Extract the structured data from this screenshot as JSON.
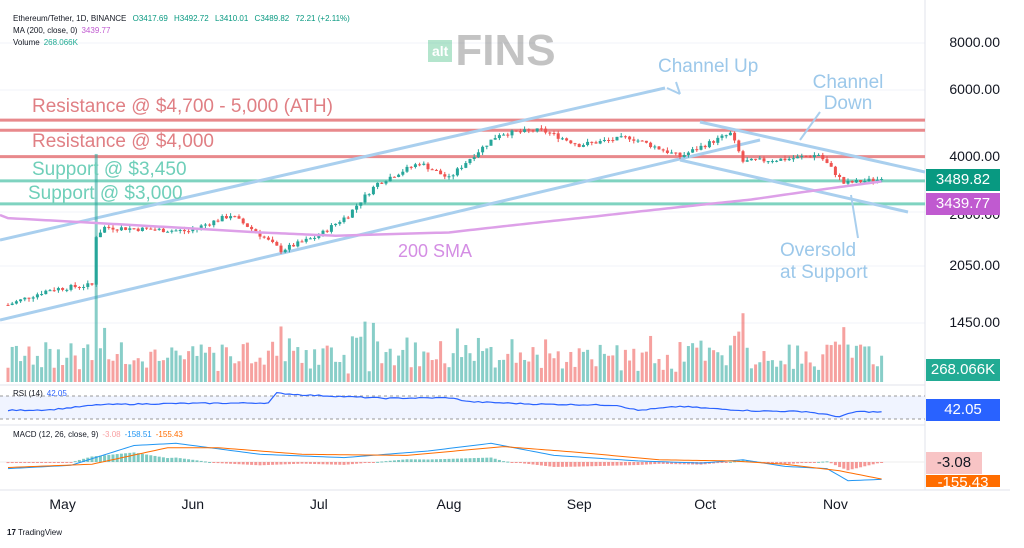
{
  "header": {
    "symbol": "Ethereum/Tether, 1D, BINANCE",
    "open": "O3417.69",
    "high": "H3492.72",
    "low": "L3410.01",
    "close": "C3489.82",
    "change": "72.21 (+2.11%)",
    "ma_label": "MA (200, close, 0)",
    "ma_value": "3439.77",
    "volume_label": "Volume",
    "volume_value": "268.066K"
  },
  "watermark": {
    "small": "alt",
    "big": "FINS"
  },
  "annotations": {
    "res_ath": "Resistance @ $4,700 - 5,000 (ATH)",
    "res_4000": "Resistance @ $4,000",
    "sup_3450": "Support @ $3,450",
    "sup_3000": "Support @ $3,000",
    "sma": "200 SMA",
    "channel_up": "Channel Up",
    "channel_down": "Channel Down",
    "oversold1": "Oversold",
    "oversold2": "at Support"
  },
  "price_tags": {
    "last": "3489.82",
    "ma": "3439.77",
    "volume": "268.066K",
    "rsi": "42.05",
    "macd": "-3.08",
    "signal": "-155.43"
  },
  "rsi": {
    "label": "RSI (14)",
    "value": "42.05"
  },
  "macd": {
    "label": "MACD (12, 26, close, 9)",
    "hist": "-3.08",
    "macd": "-158.51",
    "signal": "-155.43"
  },
  "footer": {
    "brand": "TradingView"
  },
  "colors": {
    "up": "#26a69a",
    "down": "#ef5350",
    "res": "#e8898c",
    "sup": "#7fd3c0",
    "channel": "#a9cfee",
    "sma": "#dda0e8"
  },
  "chart_data": {
    "type": "candlestick",
    "title": "Ethereum/Tether, 1D, BINANCE",
    "y_scale": "log",
    "yticks": [
      "8000.00",
      "6000.00",
      "4000.00",
      "2800.00",
      "2050.00",
      "1450.00"
    ],
    "ytick_values": [
      8000,
      6000,
      4000,
      2800,
      2050,
      1450
    ],
    "xticks": [
      "May",
      "Jun",
      "Jul",
      "Aug",
      "Sep",
      "Oct",
      "Nov"
    ],
    "xtick_days": [
      13,
      44,
      74,
      105,
      136,
      166,
      197
    ],
    "levels": {
      "resistance_ath": [
        4700,
        5000
      ],
      "resistance": 4000,
      "support_high": 3450,
      "support_low": 3000
    },
    "close_keypoints": [
      [
        0,
        1620
      ],
      [
        10,
        1780
      ],
      [
        20,
        1830
      ],
      [
        21,
        2470
      ],
      [
        23,
        2600
      ],
      [
        43,
        2540
      ],
      [
        53,
        2800
      ],
      [
        65,
        2260
      ],
      [
        74,
        2470
      ],
      [
        81,
        2800
      ],
      [
        88,
        3400
      ],
      [
        98,
        3850
      ],
      [
        105,
        3500
      ],
      [
        112,
        4140
      ],
      [
        117,
        4600
      ],
      [
        127,
        4700
      ],
      [
        136,
        4300
      ],
      [
        148,
        4500
      ],
      [
        160,
        4000
      ],
      [
        172,
        4600
      ],
      [
        175,
        3880
      ],
      [
        186,
        3950
      ],
      [
        193,
        4050
      ],
      [
        199,
        3400
      ],
      [
        208,
        3490
      ]
    ],
    "sma200_keypoints": [
      [
        0,
        2750
      ],
      [
        60,
        2520
      ],
      [
        78,
        2470
      ],
      [
        105,
        2520
      ],
      [
        140,
        2780
      ],
      [
        177,
        3080
      ],
      [
        208,
        3440
      ]
    ],
    "rsi_keypoints": [
      [
        0,
        45
      ],
      [
        10,
        46
      ],
      [
        22,
        55
      ],
      [
        40,
        57
      ],
      [
        62,
        58
      ],
      [
        64,
        75
      ],
      [
        70,
        72
      ],
      [
        90,
        66
      ],
      [
        105,
        67
      ],
      [
        110,
        60
      ],
      [
        125,
        56
      ],
      [
        145,
        54
      ],
      [
        150,
        45
      ],
      [
        160,
        52
      ],
      [
        170,
        47
      ],
      [
        178,
        44
      ],
      [
        190,
        43
      ],
      [
        198,
        34
      ],
      [
        202,
        43
      ],
      [
        208,
        42
      ]
    ],
    "macd_keypoints": [
      [
        0,
        -60
      ],
      [
        15,
        -30
      ],
      [
        30,
        150
      ],
      [
        40,
        170
      ],
      [
        60,
        70
      ],
      [
        80,
        40
      ],
      [
        100,
        100
      ],
      [
        115,
        170
      ],
      [
        130,
        60
      ],
      [
        150,
        10
      ],
      [
        165,
        -10
      ],
      [
        175,
        20
      ],
      [
        185,
        -40
      ],
      [
        195,
        -60
      ],
      [
        200,
        -170
      ],
      [
        208,
        -158
      ]
    ],
    "signal_keypoints": [
      [
        0,
        -50
      ],
      [
        20,
        -20
      ],
      [
        38,
        130
      ],
      [
        50,
        130
      ],
      [
        70,
        70
      ],
      [
        95,
        60
      ],
      [
        118,
        140
      ],
      [
        135,
        90
      ],
      [
        155,
        20
      ],
      [
        172,
        10
      ],
      [
        185,
        -20
      ],
      [
        198,
        -80
      ],
      [
        208,
        -155
      ]
    ],
    "rsi_value": 42.05,
    "macd_value": -158.51,
    "signal_value": -155.43,
    "hist_value": -3.08,
    "volume_value_k": 268.066
  }
}
